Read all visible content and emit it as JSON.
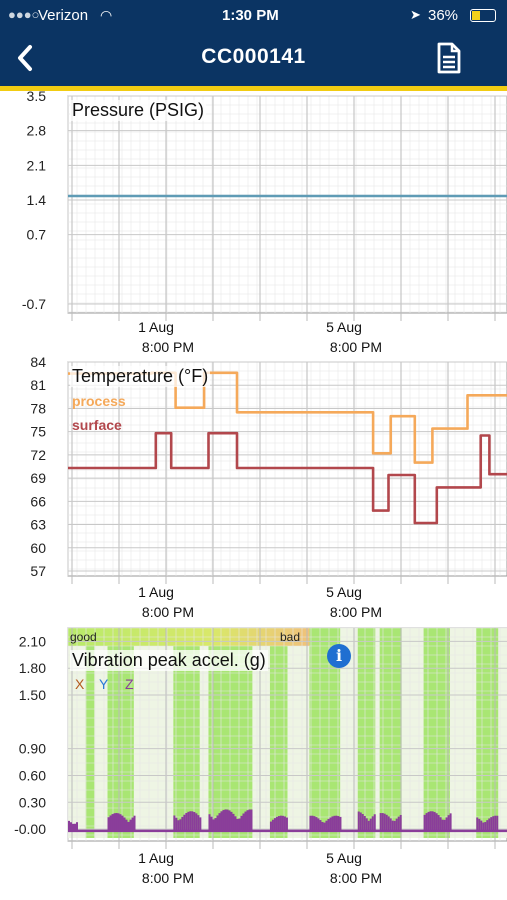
{
  "status_bar": {
    "carrier": "Verizon",
    "time": "1:30 PM",
    "battery": "36%",
    "icons": [
      "wifi-icon",
      "location-arrow-icon",
      "battery-charging-icon"
    ]
  },
  "nav": {
    "title": "CC000141",
    "back_icon": "chevron-left-icon",
    "report_icon": "document-icon"
  },
  "colors": {
    "nav_bg": "#0b3463",
    "accent": "#f2cc12",
    "pressure_line": "#5f9bb5",
    "process": "#f5a95a",
    "surface": "#b2474c",
    "vib_trace": "#8a3d9a",
    "band_good": "#92e04e",
    "band_bad": "#f0d98a"
  },
  "chart_data": [
    {
      "type": "line",
      "title": "Pressure (PSIG)",
      "y_ticks": [
        3.5,
        2.8,
        2.1,
        1.4,
        0.7,
        -0.7
      ],
      "y_tick_labels": [
        "3.5",
        "2.8",
        "2.1",
        "1.4",
        "0.7",
        "-0.7"
      ],
      "ylim": [
        -0.7,
        3.5
      ],
      "x_ticks": [
        {
          "date": "1 Aug",
          "time": "8:00 PM"
        },
        {
          "date": "5 Aug",
          "time": "8:00 PM"
        }
      ],
      "series": [
        {
          "x": [
            0,
            1
          ],
          "values": [
            1.48,
            1.48
          ]
        }
      ]
    },
    {
      "type": "line",
      "title": "Temperature (°F)",
      "y_ticks": [
        84,
        81,
        78,
        75,
        72,
        69,
        66,
        63,
        60,
        57
      ],
      "ylim": [
        57,
        84
      ],
      "x_ticks": [
        {
          "date": "1 Aug",
          "time": "8:00 PM"
        },
        {
          "date": "5 Aug",
          "time": "8:00 PM"
        }
      ],
      "series": [
        {
          "name": "process",
          "x": [
            0,
            0.19,
            0.19,
            0.245,
            0.245,
            0.31,
            0.31,
            0.385,
            0.385,
            0.695,
            0.695,
            0.735,
            0.735,
            0.79,
            0.79,
            0.83,
            0.83,
            0.91,
            0.91,
            1
          ],
          "values": [
            82.5,
            82.5,
            82.6,
            82.6,
            78.1,
            78.1,
            82.6,
            82.6,
            77.5,
            77.5,
            72.2,
            72.2,
            77,
            77,
            71,
            71,
            75.4,
            75.4,
            79.7,
            79.7
          ]
        },
        {
          "name": "surface",
          "x": [
            0,
            0.2,
            0.2,
            0.235,
            0.235,
            0.32,
            0.32,
            0.385,
            0.385,
            0.695,
            0.695,
            0.73,
            0.73,
            0.79,
            0.79,
            0.84,
            0.84,
            0.94,
            0.94,
            0.96,
            0.96,
            1
          ],
          "values": [
            70.3,
            70.3,
            74.8,
            74.8,
            70.3,
            70.3,
            74.8,
            74.8,
            70.3,
            70.3,
            64.8,
            64.8,
            69.4,
            69.4,
            63.2,
            63.2,
            67.8,
            67.8,
            74.5,
            74.5,
            69.5,
            69.5
          ]
        }
      ]
    },
    {
      "type": "line",
      "title": "Vibration peak accel. (g)",
      "y_ticks": [
        2.1,
        1.8,
        1.5,
        0.9,
        0.6,
        0.3,
        0.0
      ],
      "y_tick_labels": [
        "2.10",
        "1.80",
        "1.50",
        "0.90",
        "0.60",
        "0.30",
        "-0.00"
      ],
      "ylim": [
        -0.1,
        2.25
      ],
      "x_ticks": [
        {
          "date": "1 Aug",
          "time": "8:00 PM"
        },
        {
          "date": "5 Aug",
          "time": "8:00 PM"
        }
      ],
      "band_labels": {
        "good": "good",
        "bad": "bad"
      },
      "axes_legend": [
        "X",
        "Y",
        "Z"
      ],
      "axes_legend_colors": [
        "#b35b1f",
        "#2a7ad6",
        "#8a3d9a"
      ],
      "bands": [
        [
          0.04,
          0.06
        ],
        [
          0.09,
          0.15
        ],
        [
          0.24,
          0.3
        ],
        [
          0.32,
          0.42
        ],
        [
          0.46,
          0.5
        ],
        [
          0.55,
          0.62
        ],
        [
          0.66,
          0.7
        ],
        [
          0.71,
          0.76
        ],
        [
          0.81,
          0.87
        ],
        [
          0.93,
          0.98
        ]
      ],
      "series": [
        {
          "name": "Z",
          "baseline": -0.02,
          "bursts": [
            [
              0.0,
              0.02,
              0.12
            ],
            [
              0.09,
              0.15,
              0.18
            ],
            [
              0.24,
              0.3,
              0.2
            ],
            [
              0.32,
              0.42,
              0.22
            ],
            [
              0.46,
              0.5,
              0.15
            ],
            [
              0.55,
              0.62,
              0.15
            ],
            [
              0.66,
              0.7,
              0.2
            ],
            [
              0.71,
              0.76,
              0.18
            ],
            [
              0.81,
              0.87,
              0.2
            ],
            [
              0.93,
              0.98,
              0.15
            ]
          ]
        }
      ]
    }
  ]
}
